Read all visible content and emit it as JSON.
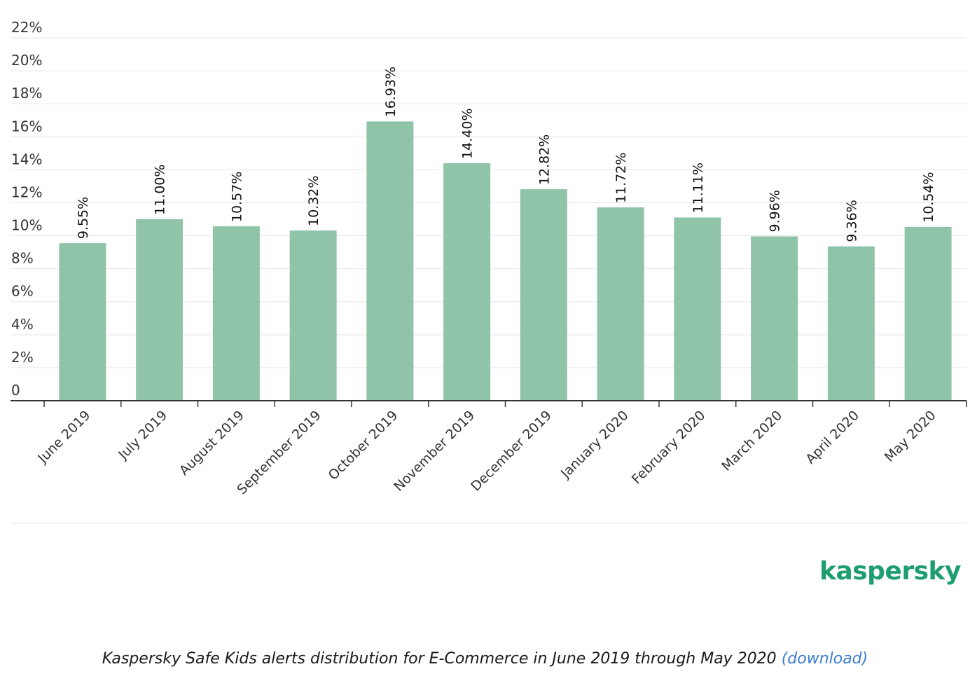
{
  "chart_data": {
    "type": "bar",
    "categories": [
      "June 2019",
      "July 2019",
      "August 2019",
      "September 2019",
      "October 2019",
      "November 2019",
      "December 2019",
      "January 2020",
      "February 2020",
      "March 2020",
      "April 2020",
      "May 2020"
    ],
    "values": [
      9.55,
      11.0,
      10.57,
      10.32,
      16.93,
      14.4,
      12.82,
      11.72,
      11.11,
      9.96,
      9.36,
      10.54
    ],
    "data_labels": [
      "9.55%",
      "11.00%",
      "10.57%",
      "10.32%",
      "16.93%",
      "14.40%",
      "12.82%",
      "11.72%",
      "11.11%",
      "9.96%",
      "9.36%",
      "10.54%"
    ],
    "y_ticks": [
      0,
      2,
      4,
      6,
      8,
      10,
      12,
      14,
      16,
      18,
      20,
      22
    ],
    "y_tick_labels": [
      "0",
      "2%",
      "4%",
      "6%",
      "8%",
      "10%",
      "12%",
      "14%",
      "16%",
      "18%",
      "20%",
      "22%"
    ],
    "ylim": [
      0,
      22
    ],
    "grid": true,
    "bar_color": "#8fc4a9"
  },
  "logo": {
    "text": "kaspersky",
    "color": "#1e9e6e"
  },
  "caption": {
    "text": "Kaspersky Safe Kids alerts distribution for E-Commerce in June 2019 through May 2020 ",
    "link": "(download)",
    "link_color": "#3a7bd5"
  }
}
